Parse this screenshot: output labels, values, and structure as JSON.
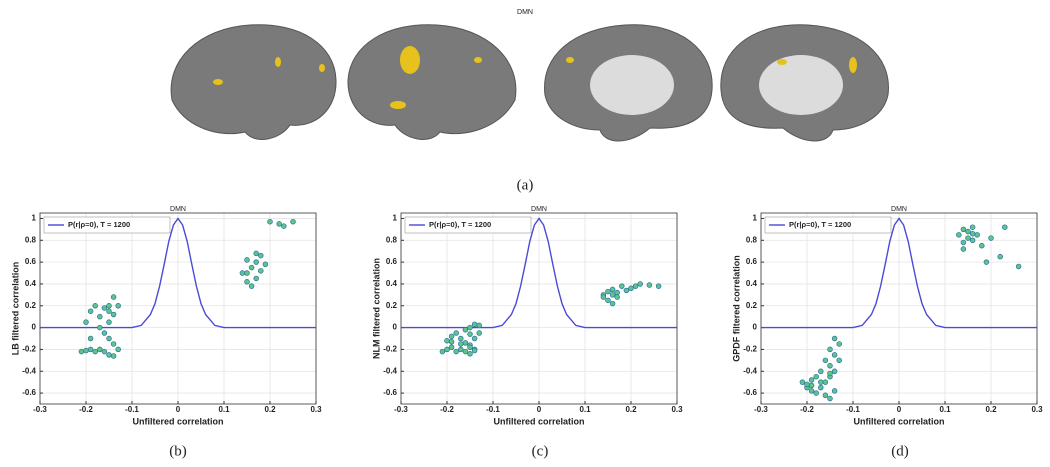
{
  "figure_title": "DMN",
  "captions": [
    "(a)",
    "(b)",
    "(c)",
    "(d)"
  ],
  "chart_data": [
    {
      "type": "scatter",
      "title": "DMN",
      "xlabel": "Unfiltered correlation",
      "ylabel": "LB filtered correlation",
      "xlim": [
        -0.3,
        0.3
      ],
      "ylim": [
        -0.7,
        1.05
      ],
      "xticks": [
        -0.3,
        -0.2,
        -0.1,
        0,
        0.1,
        0.2,
        0.3
      ],
      "yticks": [
        -0.6,
        -0.4,
        -0.2,
        0,
        0.2,
        0.4,
        0.6,
        0.8,
        1
      ],
      "grid": true,
      "legend": "upper-left",
      "series": [
        {
          "name": "P(r|ρ=0), T = 1200",
          "type": "line",
          "color": "#4a4ad8",
          "x": [
            -0.3,
            -0.1,
            -0.08,
            -0.06,
            -0.05,
            -0.04,
            -0.03,
            -0.02,
            -0.01,
            0,
            0.01,
            0.02,
            0.03,
            0.04,
            0.05,
            0.06,
            0.08,
            0.1,
            0.3
          ],
          "values": [
            0,
            0,
            0.02,
            0.12,
            0.22,
            0.38,
            0.58,
            0.79,
            0.94,
            1,
            0.94,
            0.79,
            0.58,
            0.38,
            0.22,
            0.12,
            0.02,
            0,
            0
          ]
        },
        {
          "type": "scatter",
          "color": "#5cc48c",
          "edge": "#2a6fa0",
          "x": [
            -0.21,
            -0.2,
            -0.2,
            -0.19,
            -0.19,
            -0.18,
            -0.18,
            -0.17,
            -0.17,
            -0.16,
            -0.16,
            -0.16,
            -0.15,
            -0.15,
            -0.15,
            -0.15,
            -0.14,
            -0.14,
            -0.14,
            -0.14,
            -0.13,
            -0.13,
            -0.17,
            -0.19,
            -0.15,
            0.14,
            0.15,
            0.15,
            0.16,
            0.16,
            0.17,
            0.17,
            0.18,
            0.18,
            0.19,
            0.15,
            0.17,
            0.2,
            0.22,
            0.25,
            0.23
          ],
          "values": [
            -0.22,
            0.05,
            -0.21,
            0.15,
            -0.2,
            0.2,
            -0.22,
            0.1,
            -0.2,
            0.18,
            -0.05,
            -0.22,
            0.2,
            0.05,
            -0.1,
            -0.25,
            0.28,
            0.12,
            -0.15,
            -0.26,
            0.2,
            -0.2,
            0.0,
            -0.1,
            0.15,
            0.5,
            0.62,
            0.42,
            0.55,
            0.38,
            0.6,
            0.45,
            0.66,
            0.52,
            0.58,
            0.5,
            0.68,
            0.97,
            0.95,
            0.97,
            0.93
          ]
        }
      ]
    },
    {
      "type": "scatter",
      "title": "DMN",
      "xlabel": "Unfiltered correlation",
      "ylabel": "NLM filtered correlation",
      "xlim": [
        -0.3,
        0.3
      ],
      "ylim": [
        -0.7,
        1.05
      ],
      "xticks": [
        -0.3,
        -0.2,
        -0.1,
        0,
        0.1,
        0.2,
        0.3
      ],
      "yticks": [
        -0.6,
        -0.4,
        -0.2,
        0,
        0.2,
        0.4,
        0.6,
        0.8,
        1
      ],
      "grid": true,
      "legend": "upper-left",
      "series": [
        {
          "name": "P(r|ρ=0), T = 1200",
          "type": "line",
          "color": "#4a4ad8",
          "x": [
            -0.3,
            -0.1,
            -0.08,
            -0.06,
            -0.05,
            -0.04,
            -0.03,
            -0.02,
            -0.01,
            0,
            0.01,
            0.02,
            0.03,
            0.04,
            0.05,
            0.06,
            0.08,
            0.1,
            0.3
          ],
          "values": [
            0,
            0,
            0.02,
            0.12,
            0.22,
            0.38,
            0.58,
            0.79,
            0.94,
            1,
            0.94,
            0.79,
            0.58,
            0.38,
            0.22,
            0.12,
            0.02,
            0,
            0
          ]
        },
        {
          "type": "scatter",
          "color": "#5cc48c",
          "edge": "#2a6fa0",
          "x": [
            -0.21,
            -0.2,
            -0.2,
            -0.19,
            -0.19,
            -0.18,
            -0.18,
            -0.17,
            -0.17,
            -0.16,
            -0.16,
            -0.16,
            -0.15,
            -0.15,
            -0.15,
            -0.15,
            -0.14,
            -0.14,
            -0.14,
            -0.14,
            -0.13,
            -0.13,
            -0.17,
            -0.19,
            -0.15,
            0.14,
            0.15,
            0.15,
            0.16,
            0.16,
            0.17,
            0.17,
            0.18,
            0.19,
            0.2,
            0.14,
            0.16,
            0.21,
            0.22,
            0.24,
            0.26
          ],
          "values": [
            -0.22,
            -0.12,
            -0.2,
            -0.08,
            -0.18,
            -0.05,
            -0.22,
            -0.1,
            -0.2,
            -0.02,
            -0.14,
            -0.22,
            0.0,
            -0.06,
            -0.16,
            -0.24,
            0.03,
            -0.1,
            -0.2,
            -0.21,
            0.02,
            -0.05,
            -0.15,
            -0.13,
            -0.18,
            0.3,
            0.33,
            0.25,
            0.35,
            0.22,
            0.32,
            0.28,
            0.38,
            0.34,
            0.36,
            0.28,
            0.3,
            0.38,
            0.4,
            0.39,
            0.38
          ]
        }
      ]
    },
    {
      "type": "scatter",
      "title": "DMN",
      "xlabel": "Unfiltered correlation",
      "ylabel": "GPDF filtered correlation",
      "xlim": [
        -0.3,
        0.3
      ],
      "ylim": [
        -0.7,
        1.05
      ],
      "xticks": [
        -0.3,
        -0.2,
        -0.1,
        0,
        0.1,
        0.2,
        0.3
      ],
      "yticks": [
        -0.6,
        -0.4,
        -0.2,
        0,
        0.2,
        0.4,
        0.6,
        0.8,
        1
      ],
      "grid": true,
      "legend": "upper-left",
      "series": [
        {
          "name": "P(r|ρ=0), T = 1200",
          "type": "line",
          "color": "#4a4ad8",
          "x": [
            -0.3,
            -0.1,
            -0.08,
            -0.06,
            -0.05,
            -0.04,
            -0.03,
            -0.02,
            -0.01,
            0,
            0.01,
            0.02,
            0.03,
            0.04,
            0.05,
            0.06,
            0.08,
            0.1,
            0.3
          ],
          "values": [
            0,
            0,
            0.02,
            0.12,
            0.22,
            0.38,
            0.58,
            0.79,
            0.94,
            1,
            0.94,
            0.79,
            0.58,
            0.38,
            0.22,
            0.12,
            0.02,
            0,
            0
          ]
        },
        {
          "type": "scatter",
          "color": "#5cc48c",
          "edge": "#2a6fa0",
          "x": [
            -0.21,
            -0.2,
            -0.2,
            -0.19,
            -0.19,
            -0.18,
            -0.18,
            -0.17,
            -0.17,
            -0.16,
            -0.16,
            -0.16,
            -0.15,
            -0.15,
            -0.15,
            -0.15,
            -0.14,
            -0.14,
            -0.14,
            -0.14,
            -0.13,
            -0.13,
            -0.17,
            -0.19,
            -0.15,
            0.13,
            0.14,
            0.14,
            0.15,
            0.15,
            0.16,
            0.16,
            0.17,
            0.18,
            0.2,
            0.14,
            0.16,
            0.19,
            0.22,
            0.23,
            0.26
          ],
          "values": [
            -0.5,
            -0.55,
            -0.52,
            -0.48,
            -0.58,
            -0.45,
            -0.6,
            -0.4,
            -0.55,
            -0.3,
            -0.5,
            -0.62,
            -0.2,
            -0.35,
            -0.45,
            -0.65,
            -0.1,
            -0.25,
            -0.4,
            -0.58,
            -0.15,
            -0.3,
            -0.5,
            -0.53,
            -0.42,
            0.85,
            0.9,
            0.78,
            0.88,
            0.82,
            0.92,
            0.8,
            0.85,
            0.75,
            0.82,
            0.72,
            0.86,
            0.6,
            0.65,
            0.92,
            0.56
          ]
        }
      ]
    }
  ]
}
